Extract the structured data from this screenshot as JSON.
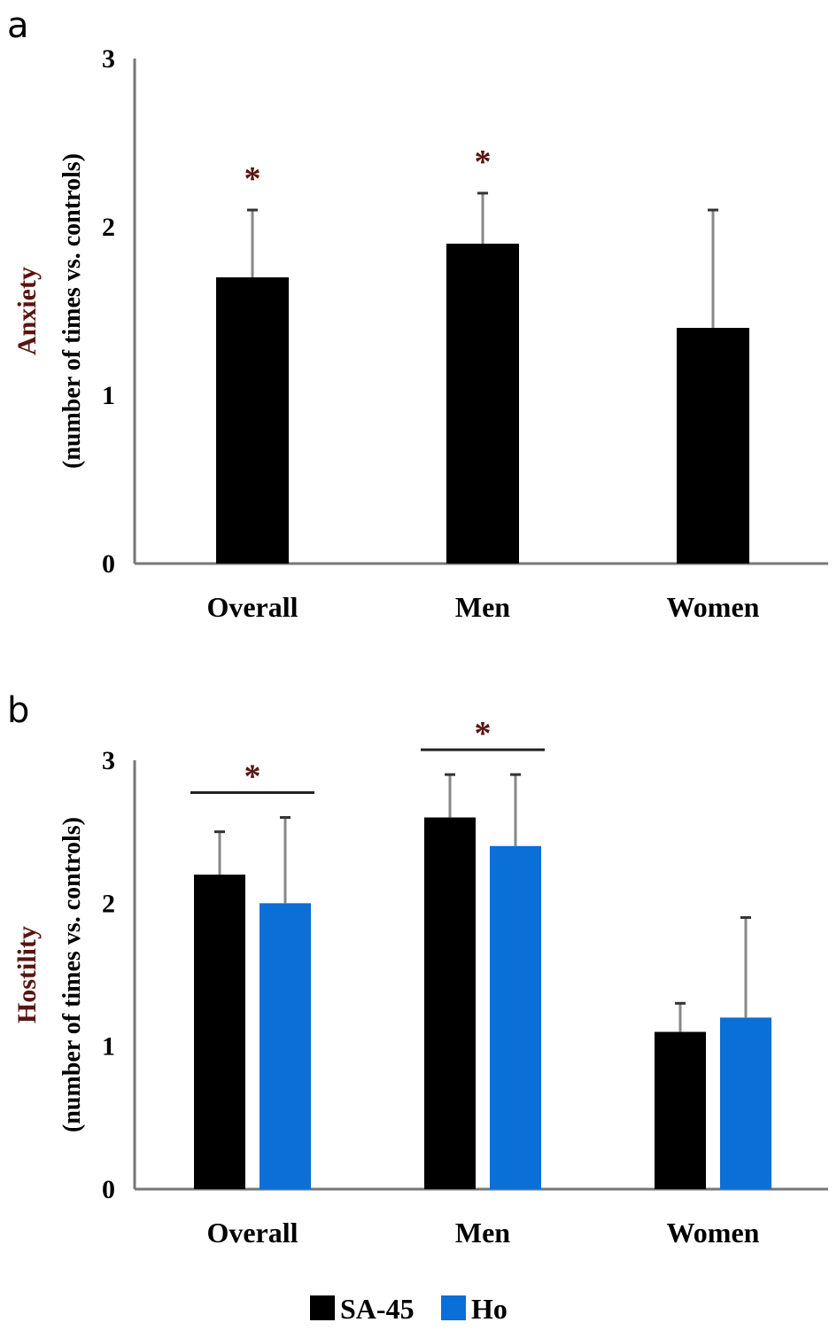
{
  "chart_data": [
    {
      "panel": "a",
      "type": "bar",
      "categories": [
        "Overall",
        "Men",
        "Women"
      ],
      "ylabel_line1": "Anxiety",
      "ylabel_line2": "(number of times vs. controls)",
      "ylim": [
        0,
        3
      ],
      "yticks": [
        "0",
        "1",
        "2",
        "3"
      ],
      "series": [
        {
          "values": [
            1.7,
            1.9,
            1.4
          ],
          "errors": [
            0.4,
            0.3,
            0.7
          ],
          "color": "#000000"
        }
      ],
      "annotations": [
        {
          "category": "Overall",
          "text": "*"
        },
        {
          "category": "Men",
          "text": "*"
        }
      ],
      "grid": false
    },
    {
      "panel": "b",
      "type": "bar",
      "categories": [
        "Overall",
        "Men",
        "Women"
      ],
      "ylabel_line1": "Hostility",
      "ylabel_line2": "(number of times vs. controls)",
      "ylim": [
        0,
        3
      ],
      "yticks": [
        "0",
        "1",
        "2",
        "3"
      ],
      "series": [
        {
          "name": "SA-45",
          "values": [
            2.2,
            2.6,
            1.1
          ],
          "errors": [
            0.3,
            0.3,
            0.2
          ],
          "color": "#000000"
        },
        {
          "name": "Ho",
          "values": [
            2.0,
            2.4,
            1.2
          ],
          "errors": [
            0.6,
            0.5,
            0.7
          ],
          "color": "#0a6fd6"
        }
      ],
      "annotations": [
        {
          "category": "Overall",
          "text": "*",
          "bracket": true
        },
        {
          "category": "Men",
          "text": "*",
          "bracket": true
        }
      ],
      "legend_placement": "bottom-center",
      "grid": false
    }
  ]
}
